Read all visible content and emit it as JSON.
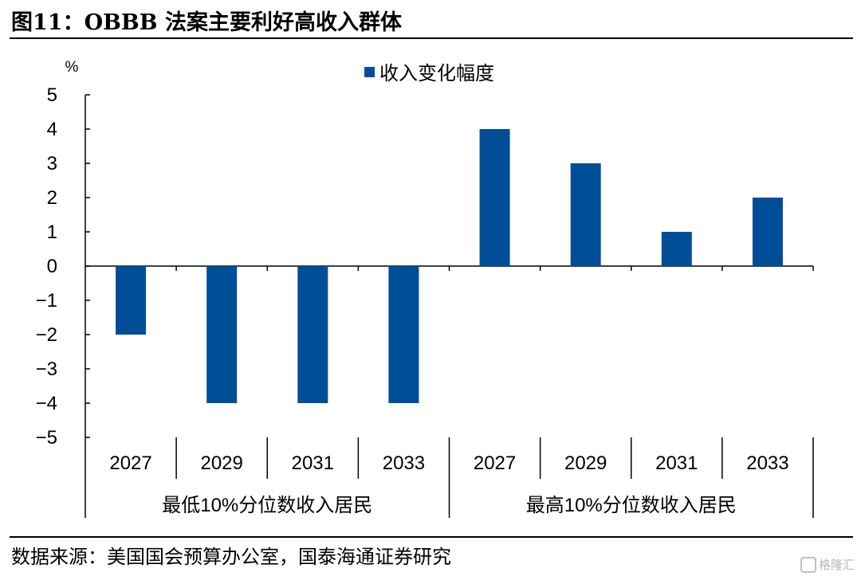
{
  "figure": {
    "title": "图11：OBBB 法案主要利好高收入群体",
    "source": "数据来源：美国国会预算办公室，国泰海通证券研究",
    "watermark": "格隆汇"
  },
  "colors": {
    "bar": "#004E98",
    "axis": "#000000"
  },
  "chart_data": {
    "type": "bar",
    "unit_label": "%",
    "legend": "收入变化幅度",
    "legend_position": "top-center",
    "categories": [
      "2027",
      "2029",
      "2031",
      "2033",
      "2027",
      "2029",
      "2031",
      "2033"
    ],
    "groups": [
      {
        "label": "最低10%分位数收入居民",
        "start": 0,
        "count": 4
      },
      {
        "label": "最高10%分位数收入居民",
        "start": 4,
        "count": 4
      }
    ],
    "series": [
      {
        "name": "收入变化幅度",
        "values": [
          -2,
          -4,
          -4,
          -4,
          4,
          3,
          1,
          2
        ]
      }
    ],
    "ylim": [
      -5,
      5
    ],
    "yticks": [
      5,
      4,
      3,
      2,
      1,
      0,
      -1,
      -2,
      -3,
      -4,
      -5
    ],
    "grid": false
  }
}
